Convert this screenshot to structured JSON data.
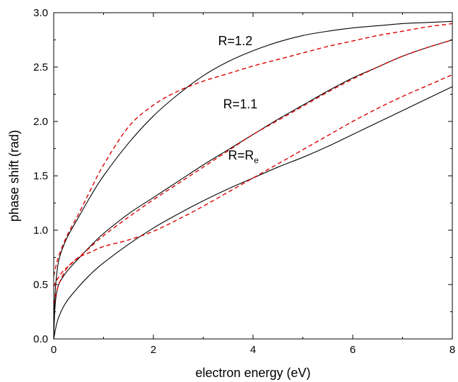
{
  "chart_data": {
    "type": "line",
    "title": "",
    "xlabel": "electron energy (eV)",
    "ylabel": "phase shift (rad)",
    "xlim": [
      0,
      8
    ],
    "ylim": [
      0,
      3.0
    ],
    "xticks": [
      0,
      2,
      4,
      6,
      8
    ],
    "yticks": [
      0.0,
      0.5,
      1.0,
      1.5,
      2.0,
      2.5,
      3.0
    ],
    "xtick_labels": [
      "0",
      "2",
      "4",
      "6",
      "8"
    ],
    "ytick_labels": [
      "0.0",
      "0.5",
      "1.0",
      "1.5",
      "2.0",
      "2.5",
      "3.0"
    ],
    "grid": false,
    "legend": "none",
    "colors": {
      "solid": "#000000",
      "dashed": "#dd0000"
    },
    "annotations": [
      {
        "text": "R=1.2",
        "sub": "",
        "x": 3.3,
        "y": 2.7
      },
      {
        "text": "R=1.1",
        "sub": "",
        "x": 3.4,
        "y": 2.12
      },
      {
        "text": "R=R",
        "sub": "e",
        "x": 3.5,
        "y": 1.65
      }
    ],
    "series": [
      {
        "style": "solid",
        "x": [
          0,
          0.02,
          0.05,
          0.1,
          0.2,
          0.3,
          0.5,
          0.75,
          1,
          1.5,
          2,
          2.5,
          3,
          3.5,
          4,
          4.5,
          5,
          5.5,
          6,
          6.5,
          7,
          7.5,
          8
        ],
        "y": [
          0.0,
          0.35,
          0.55,
          0.72,
          0.86,
          0.96,
          1.12,
          1.32,
          1.5,
          1.8,
          2.05,
          2.25,
          2.42,
          2.55,
          2.65,
          2.73,
          2.79,
          2.83,
          2.86,
          2.88,
          2.9,
          2.91,
          2.92
        ]
      },
      {
        "style": "dashed",
        "x": [
          0,
          0.05,
          0.1,
          0.2,
          0.3,
          0.5,
          0.75,
          1,
          1.5,
          2,
          2.5,
          3,
          3.5,
          4,
          4.5,
          5,
          5.5,
          6,
          6.5,
          7,
          7.5,
          8
        ],
        "y": [
          0.58,
          0.68,
          0.76,
          0.88,
          0.98,
          1.15,
          1.38,
          1.6,
          1.95,
          2.15,
          2.28,
          2.37,
          2.44,
          2.51,
          2.57,
          2.63,
          2.69,
          2.74,
          2.79,
          2.83,
          2.87,
          2.9
        ]
      },
      {
        "style": "solid",
        "x": [
          0,
          0.02,
          0.05,
          0.1,
          0.2,
          0.3,
          0.5,
          0.75,
          1,
          1.5,
          2,
          2.5,
          3,
          3.5,
          4,
          4.5,
          5,
          5.5,
          6,
          6.5,
          7,
          7.5,
          8
        ],
        "y": [
          0.0,
          0.25,
          0.4,
          0.5,
          0.58,
          0.64,
          0.74,
          0.86,
          0.97,
          1.15,
          1.3,
          1.45,
          1.6,
          1.74,
          1.88,
          2.02,
          2.15,
          2.28,
          2.4,
          2.5,
          2.6,
          2.68,
          2.75
        ]
      },
      {
        "style": "dashed",
        "x": [
          0,
          0.05,
          0.1,
          0.2,
          0.3,
          0.5,
          0.75,
          1,
          1.5,
          2,
          2.5,
          3,
          3.5,
          4,
          4.5,
          5,
          5.5,
          6,
          6.5,
          7,
          7.5,
          8
        ],
        "y": [
          0.48,
          0.53,
          0.57,
          0.63,
          0.67,
          0.75,
          0.85,
          0.95,
          1.12,
          1.28,
          1.43,
          1.58,
          1.73,
          1.88,
          2.01,
          2.14,
          2.27,
          2.39,
          2.5,
          2.6,
          2.68,
          2.75
        ]
      },
      {
        "style": "solid",
        "x": [
          0,
          0.05,
          0.1,
          0.2,
          0.3,
          0.5,
          0.75,
          1,
          1.5,
          2,
          2.5,
          3,
          3.5,
          4,
          4.5,
          5,
          5.5,
          6,
          6.5,
          7,
          7.5,
          8
        ],
        "y": [
          0.0,
          0.12,
          0.2,
          0.3,
          0.37,
          0.48,
          0.6,
          0.7,
          0.87,
          1.02,
          1.15,
          1.27,
          1.38,
          1.48,
          1.58,
          1.67,
          1.77,
          1.88,
          1.99,
          2.1,
          2.21,
          2.32
        ]
      },
      {
        "style": "dashed",
        "x": [
          0,
          0.05,
          0.1,
          0.2,
          0.3,
          0.5,
          0.75,
          1,
          1.5,
          2,
          2.5,
          3,
          3.5,
          4,
          4.5,
          5,
          5.5,
          6,
          6.5,
          7,
          7.5,
          8
        ],
        "y": [
          0.32,
          0.42,
          0.5,
          0.6,
          0.67,
          0.75,
          0.8,
          0.85,
          0.91,
          0.99,
          1.1,
          1.22,
          1.35,
          1.48,
          1.61,
          1.74,
          1.87,
          2.0,
          2.12,
          2.23,
          2.33,
          2.43
        ]
      }
    ]
  }
}
